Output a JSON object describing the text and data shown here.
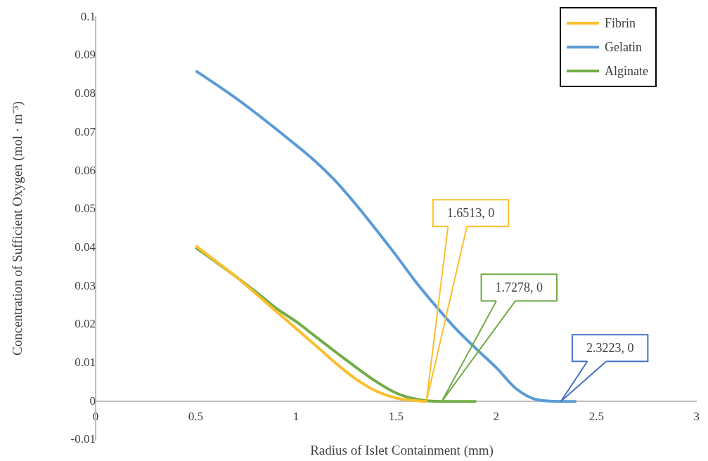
{
  "chart_data": {
    "type": "line",
    "xlabel": "Radius of Islet Containment (mm)",
    "ylabel": "Concentration of Sufficient Oxygen (mol · m⁻³)",
    "xlim": [
      0,
      3
    ],
    "xticks": [
      0,
      0.5,
      1,
      1.5,
      2,
      2.5,
      3
    ],
    "ylim": [
      -0.01,
      0.1
    ],
    "yticks": [
      -0.01,
      0,
      0.01,
      0.02,
      0.03,
      0.04,
      0.05,
      0.06,
      0.07,
      0.08,
      0.09,
      0.1
    ],
    "grid": false,
    "legend": "top right",
    "marker": "none",
    "line_style": "solid",
    "series": [
      {
        "name": "Fibrin",
        "color": "#fbbf2d",
        "x": [
          0.5,
          0.6,
          0.7,
          0.8,
          0.9,
          1,
          1.1,
          1.2,
          1.3,
          1.4,
          1.5,
          1.6,
          1.6513
        ],
        "values": [
          0.0405,
          0.0365,
          0.0325,
          0.028,
          0.0235,
          0.019,
          0.0145,
          0.0099,
          0.0058,
          0.0027,
          0.0009,
          0.0002,
          0
        ]
      },
      {
        "name": "Gelatin",
        "color": "#5b9bd5",
        "x": [
          0.5,
          0.6,
          0.7,
          0.8,
          0.9,
          1,
          1.1,
          1.2,
          1.3,
          1.4,
          1.5,
          1.6,
          1.7,
          1.8,
          1.9,
          2,
          2.1,
          2.2,
          2.3223,
          2.4
        ],
        "values": [
          0.086,
          0.0825,
          0.0789,
          0.075,
          0.0709,
          0.0667,
          0.0623,
          0.0572,
          0.0512,
          0.0447,
          0.038,
          0.031,
          0.0247,
          0.0188,
          0.0137,
          0.0088,
          0.0033,
          0.0005,
          0,
          0
        ]
      },
      {
        "name": "Alginate",
        "color": "#70ad47",
        "x": [
          0.5,
          0.6,
          0.7,
          0.8,
          0.9,
          1,
          1.1,
          1.2,
          1.3,
          1.4,
          1.5,
          1.6,
          1.7278,
          1.9
        ],
        "values": [
          0.04,
          0.0363,
          0.0325,
          0.0285,
          0.0243,
          0.0208,
          0.0168,
          0.0128,
          0.0089,
          0.0052,
          0.0022,
          0.0006,
          0,
          0
        ]
      }
    ],
    "annotations": [
      "1.6513, 0",
      "1.7278, 0",
      "2.3223, 0"
    ]
  }
}
